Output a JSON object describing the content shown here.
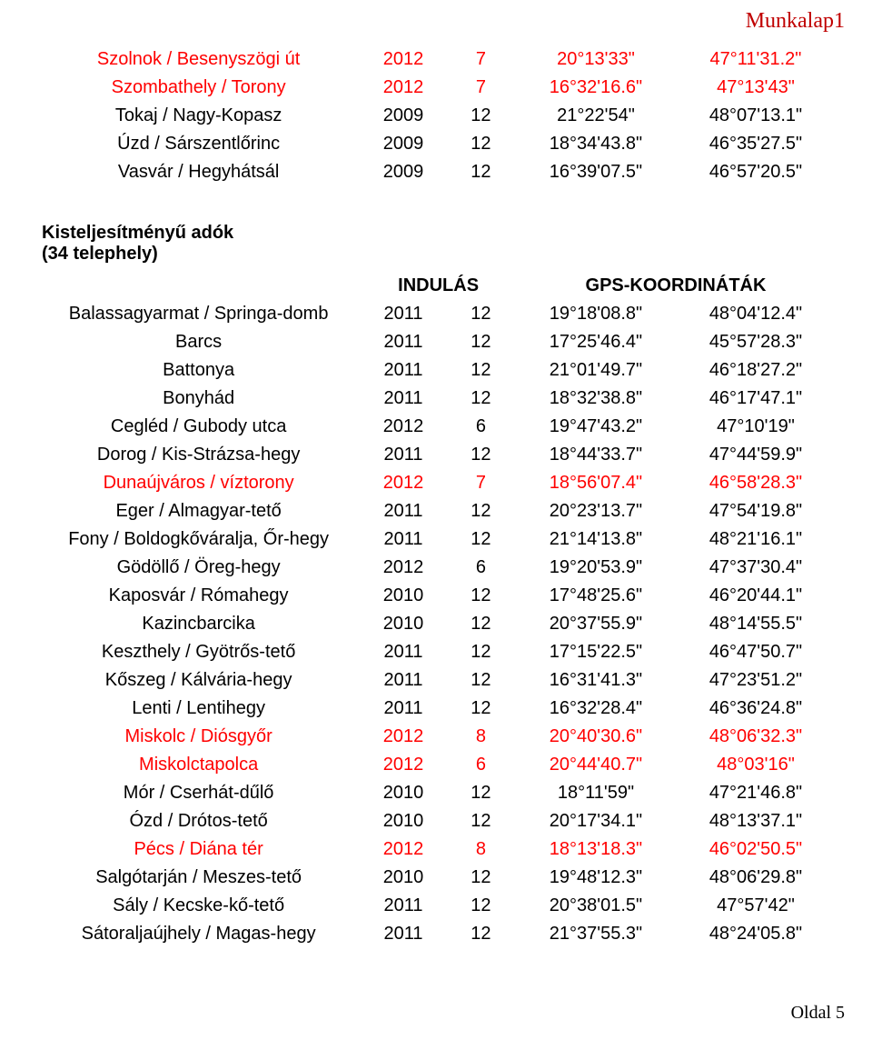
{
  "page": {
    "sheet_label": "Munkalap1",
    "footer": "Oldal 5"
  },
  "top_rows": [
    {
      "name": "Szolnok / Besenyszögi út",
      "year": "2012",
      "month": "7",
      "lon": "20°13'33\"",
      "lat": "47°11'31.2\"",
      "red": true
    },
    {
      "name": "Szombathely / Torony",
      "year": "2012",
      "month": "7",
      "lon": "16°32'16.6\"",
      "lat": "47°13'43\"",
      "red": true
    },
    {
      "name": "Tokaj / Nagy-Kopasz",
      "year": "2009",
      "month": "12",
      "lon": "21°22'54\"",
      "lat": "48°07'13.1\"",
      "red": false
    },
    {
      "name": "Úzd / Sárszentlőrinc",
      "year": "2009",
      "month": "12",
      "lon": "18°34'43.8\"",
      "lat": "46°35'27.5\"",
      "red": false
    },
    {
      "name": "Vasvár / Hegyhátsál",
      "year": "2009",
      "month": "12",
      "lon": "16°39'07.5\"",
      "lat": "46°57'20.5\"",
      "red": false
    }
  ],
  "section": {
    "title_line1": "Kisteljesítményű adók",
    "title_line2": "(34 telephely)",
    "col_indulas": "INDULÁS",
    "col_gps": "GPS-KOORDINÁTÁK"
  },
  "main_rows": [
    {
      "name": "Balassagyarmat / Springa-domb",
      "year": "2011",
      "month": "12",
      "lon": "19°18'08.8\"",
      "lat": "48°04'12.4\"",
      "red": false
    },
    {
      "name": "Barcs",
      "year": "2011",
      "month": "12",
      "lon": "17°25'46.4\"",
      "lat": "45°57'28.3\"",
      "red": false
    },
    {
      "name": "Battonya",
      "year": "2011",
      "month": "12",
      "lon": "21°01'49.7\"",
      "lat": "46°18'27.2\"",
      "red": false
    },
    {
      "name": "Bonyhád",
      "year": "2011",
      "month": "12",
      "lon": "18°32'38.8\"",
      "lat": "46°17'47.1\"",
      "red": false
    },
    {
      "name": "Cegléd / Gubody utca",
      "year": "2012",
      "month": "6",
      "lon": "19°47'43.2\"",
      "lat": "47°10'19\"",
      "red": false
    },
    {
      "name": "Dorog / Kis-Strázsa-hegy",
      "year": "2011",
      "month": "12",
      "lon": "18°44'33.7\"",
      "lat": "47°44'59.9\"",
      "red": false
    },
    {
      "name": "Dunaújváros / víztorony",
      "year": "2012",
      "month": "7",
      "lon": "18°56'07.4\"",
      "lat": "46°58'28.3\"",
      "red": true
    },
    {
      "name": "Eger / Almagyar-tető",
      "year": "2011",
      "month": "12",
      "lon": "20°23'13.7\"",
      "lat": "47°54'19.8\"",
      "red": false
    },
    {
      "name": "Fony / Boldogkőváralja, Őr-hegy",
      "year": "2011",
      "month": "12",
      "lon": "21°14'13.8\"",
      "lat": "48°21'16.1\"",
      "red": false
    },
    {
      "name": "Gödöllő / Öreg-hegy",
      "year": "2012",
      "month": "6",
      "lon": "19°20'53.9\"",
      "lat": "47°37'30.4\"",
      "red": false
    },
    {
      "name": "Kaposvár / Rómahegy",
      "year": "2010",
      "month": "12",
      "lon": "17°48'25.6\"",
      "lat": "46°20'44.1\"",
      "red": false
    },
    {
      "name": "Kazincbarcika",
      "year": "2010",
      "month": "12",
      "lon": "20°37'55.9\"",
      "lat": "48°14'55.5\"",
      "red": false
    },
    {
      "name": "Keszthely / Gyötrős-tető",
      "year": "2011",
      "month": "12",
      "lon": "17°15'22.5\"",
      "lat": "46°47'50.7\"",
      "red": false
    },
    {
      "name": "Kőszeg / Kálvária-hegy",
      "year": "2011",
      "month": "12",
      "lon": "16°31'41.3\"",
      "lat": "47°23'51.2\"",
      "red": false
    },
    {
      "name": "Lenti / Lentihegy",
      "year": "2011",
      "month": "12",
      "lon": "16°32'28.4\"",
      "lat": "46°36'24.8\"",
      "red": false
    },
    {
      "name": "Miskolc / Diósgyőr",
      "year": "2012",
      "month": "8",
      "lon": "20°40'30.6\"",
      "lat": "48°06'32.3\"",
      "red": true
    },
    {
      "name": "Miskolctapolca",
      "year": "2012",
      "month": "6",
      "lon": "20°44'40.7\"",
      "lat": "48°03'16\"",
      "red": true
    },
    {
      "name": "Mór / Cserhát-dűlő",
      "year": "2010",
      "month": "12",
      "lon": "18°11'59\"",
      "lat": "47°21'46.8\"",
      "red": false
    },
    {
      "name": "Ózd / Drótos-tető",
      "year": "2010",
      "month": "12",
      "lon": "20°17'34.1\"",
      "lat": "48°13'37.1\"",
      "red": false
    },
    {
      "name": "Pécs / Diána tér",
      "year": "2012",
      "month": "8",
      "lon": "18°13'18.3\"",
      "lat": "46°02'50.5\"",
      "red": true
    },
    {
      "name": "Salgótarján / Meszes-tető",
      "year": "2010",
      "month": "12",
      "lon": "19°48'12.3\"",
      "lat": "48°06'29.8\"",
      "red": false
    },
    {
      "name": "Sály / Kecske-kő-tető",
      "year": "2011",
      "month": "12",
      "lon": "20°38'01.5\"",
      "lat": "47°57'42\"",
      "red": false
    },
    {
      "name": "Sátoraljaújhely / Magas-hegy",
      "year": "2011",
      "month": "12",
      "lon": "21°37'55.3\"",
      "lat": "48°24'05.8\"",
      "red": false
    }
  ]
}
